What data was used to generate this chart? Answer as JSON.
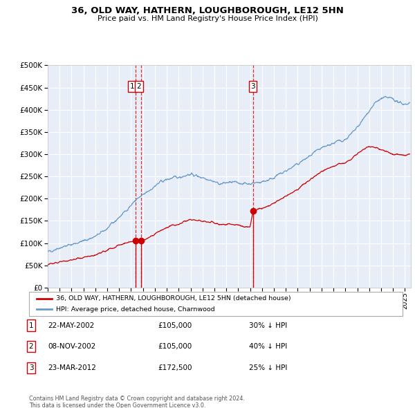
{
  "title": "36, OLD WAY, HATHERN, LOUGHBOROUGH, LE12 5HN",
  "subtitle": "Price paid vs. HM Land Registry's House Price Index (HPI)",
  "legend_red": "36, OLD WAY, HATHERN, LOUGHBOROUGH, LE12 5HN (detached house)",
  "legend_blue": "HPI: Average price, detached house, Charnwood",
  "footer1": "Contains HM Land Registry data © Crown copyright and database right 2024.",
  "footer2": "This data is licensed under the Open Government Licence v3.0.",
  "transactions": [
    {
      "num": 1,
      "date": "22-MAY-2002",
      "price": 105000,
      "pct": "30%",
      "dir": "↓"
    },
    {
      "num": 2,
      "date": "08-NOV-2002",
      "price": 105000,
      "pct": "40%",
      "dir": "↓"
    },
    {
      "num": 3,
      "date": "23-MAR-2012",
      "price": 172500,
      "pct": "25%",
      "dir": "↓"
    }
  ],
  "sale_dates_decimal": [
    2002.38,
    2002.85,
    2012.23
  ],
  "sale_prices": [
    105000,
    105000,
    172500
  ],
  "vline_x1": 2002.38,
  "vline_x2": 2002.85,
  "vline_x3": 2012.23,
  "ylim": [
    0,
    500000
  ],
  "yticks": [
    0,
    50000,
    100000,
    150000,
    200000,
    250000,
    300000,
    350000,
    400000,
    450000,
    500000
  ],
  "xlim_start": 1995.0,
  "xlim_end": 2025.5,
  "xticks": [
    1995,
    1996,
    1997,
    1998,
    1999,
    2000,
    2001,
    2002,
    2003,
    2004,
    2005,
    2006,
    2007,
    2008,
    2009,
    2010,
    2011,
    2012,
    2013,
    2014,
    2015,
    2016,
    2017,
    2018,
    2019,
    2020,
    2021,
    2022,
    2023,
    2024,
    2025
  ],
  "bg_color": "#e8eef8",
  "red_color": "#cc0000",
  "blue_color": "#6699cc",
  "grid_color": "#ffffff"
}
